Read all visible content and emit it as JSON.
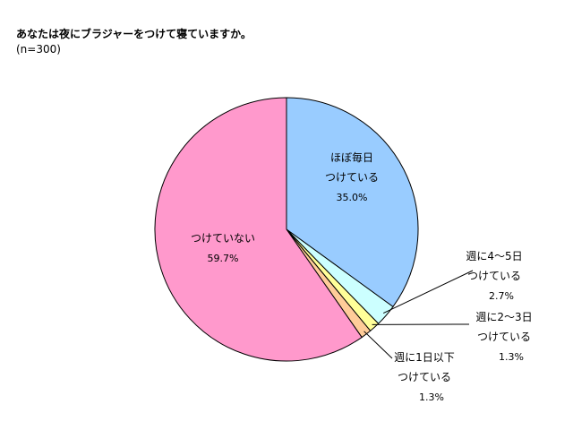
{
  "title": "あなたは夜にブラジャーをつけて寝ていますか。",
  "subtitle": "(n=300)",
  "chart_data": {
    "type": "pie",
    "title": "あなたは夜にブラジャーをつけて寝ていますか。",
    "subtitle": "(n=300)",
    "slices": [
      {
        "label": [
          "ほぼ毎日",
          "つけている"
        ],
        "value": 35.0,
        "value_label": "35.0%",
        "color": "#99ccff"
      },
      {
        "label": [
          "週に4〜5日",
          "つけている"
        ],
        "value": 2.7,
        "value_label": "2.7%",
        "color": "#ccffff"
      },
      {
        "label": [
          "週に2〜3日",
          "つけている"
        ],
        "value": 1.3,
        "value_label": "1.3%",
        "color": "#ffff99"
      },
      {
        "label": [
          "週に1日以下",
          "つけている"
        ],
        "value": 1.3,
        "value_label": "1.3%",
        "color": "#ffcc99"
      },
      {
        "label": [
          "つけていない"
        ],
        "value": 59.7,
        "value_label": "59.7%",
        "color": "#ff99cc"
      }
    ],
    "start": "12 o'clock",
    "direction": "clockwise",
    "border_color": "#000000"
  }
}
